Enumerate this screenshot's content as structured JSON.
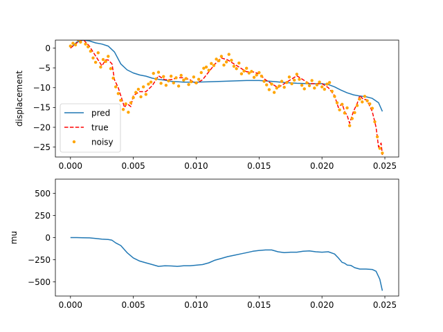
{
  "chart_data": [
    {
      "type": "line",
      "ylabel": "displacement",
      "xlim": [
        -0.0012,
        0.0261
      ],
      "ylim": [
        -27.5,
        2
      ],
      "xticks": [
        "0.000",
        "0.005",
        "0.010",
        "0.015",
        "0.020",
        "0.025"
      ],
      "xtick_values": [
        0,
        0.005,
        0.01,
        0.015,
        0.02,
        0.025
      ],
      "yticks": [
        "0",
        "−5",
        "−10",
        "−15",
        "−20",
        "−25"
      ],
      "ytick_values": [
        0,
        -5,
        -10,
        -15,
        -20,
        -25
      ],
      "legend_position": "lower-left",
      "series": [
        {
          "name": "pred",
          "style": "solid",
          "color": "#1f77b4",
          "x": [
            0,
            0.0005,
            0.001,
            0.0015,
            0.002,
            0.0025,
            0.003,
            0.0035,
            0.004,
            0.0045,
            0.005,
            0.0055,
            0.006,
            0.0065,
            0.007,
            0.0075,
            0.008,
            0.009,
            0.01,
            0.011,
            0.012,
            0.013,
            0.014,
            0.015,
            0.016,
            0.017,
            0.018,
            0.019,
            0.02,
            0.0205,
            0.021,
            0.0215,
            0.022,
            0.0225,
            0.023,
            0.0235,
            0.024,
            0.0245,
            0.0248
          ],
          "y": [
            0,
            1.5,
            2,
            1.8,
            1.3,
            1,
            0.5,
            -1,
            -4,
            -5.5,
            -6.3,
            -6.8,
            -7.1,
            -7.6,
            -7.9,
            -8.1,
            -8.4,
            -8.6,
            -8.6,
            -8.5,
            -8.4,
            -8.3,
            -8.2,
            -8.2,
            -8.4,
            -8.7,
            -8.9,
            -9.0,
            -9.0,
            -9.2,
            -9.8,
            -10.6,
            -11.3,
            -11.8,
            -12.1,
            -12.3,
            -12.7,
            -13.8,
            -16
          ]
        },
        {
          "name": "true",
          "style": "dashed",
          "color": "#ff0000",
          "x": [
            0,
            0.0005,
            0.001,
            0.0015,
            0.002,
            0.0025,
            0.0028,
            0.003,
            0.0033,
            0.0035,
            0.0038,
            0.004,
            0.0043,
            0.0045,
            0.0048,
            0.005,
            0.0055,
            0.006,
            0.0065,
            0.007,
            0.0075,
            0.008,
            0.0085,
            0.009,
            0.0095,
            0.01,
            0.0105,
            0.011,
            0.0115,
            0.012,
            0.0125,
            0.013,
            0.0135,
            0.014,
            0.0145,
            0.015,
            0.0155,
            0.016,
            0.0165,
            0.017,
            0.0175,
            0.018,
            0.0185,
            0.019,
            0.0195,
            0.02,
            0.0205,
            0.021,
            0.0213,
            0.0216,
            0.0218,
            0.022,
            0.0222,
            0.0225,
            0.0228,
            0.023,
            0.0233,
            0.0235,
            0.0237,
            0.024,
            0.0243,
            0.0245,
            0.0247,
            0.0248
          ],
          "y": [
            0,
            1.3,
            2.2,
            0.5,
            -2,
            -4.5,
            -3,
            -3,
            -4,
            -8,
            -10,
            -12,
            -15,
            -14,
            -14.8,
            -12,
            -11,
            -11,
            -9.5,
            -7,
            -8,
            -8,
            -7.5,
            -7.5,
            -8,
            -9,
            -8,
            -6,
            -4,
            -2.5,
            -3,
            -4,
            -5,
            -6,
            -6,
            -6.5,
            -8,
            -9,
            -10,
            -9,
            -8,
            -7,
            -8,
            -9,
            -9,
            -9,
            -10,
            -12,
            -15,
            -14,
            -16,
            -17,
            -19,
            -16,
            -14,
            -12,
            -13,
            -13,
            -14,
            -16,
            -20,
            -25,
            -24,
            -27
          ]
        },
        {
          "name": "noisy",
          "style": "points",
          "color": "#ffa500",
          "x": [
            0,
            0.0002,
            0.0004,
            0.0006,
            0.0008,
            0.001,
            0.0012,
            0.0014,
            0.0016,
            0.0018,
            0.002,
            0.0022,
            0.0024,
            0.0026,
            0.0028,
            0.003,
            0.0032,
            0.0034,
            0.0036,
            0.0038,
            0.004,
            0.0042,
            0.0044,
            0.0046,
            0.0048,
            0.005,
            0.0052,
            0.0054,
            0.0056,
            0.0058,
            0.006,
            0.0062,
            0.0064,
            0.0066,
            0.0068,
            0.007,
            0.0072,
            0.0074,
            0.0076,
            0.0078,
            0.008,
            0.0082,
            0.0084,
            0.0086,
            0.0088,
            0.009,
            0.0092,
            0.0094,
            0.0096,
            0.0098,
            0.01,
            0.0102,
            0.0104,
            0.0106,
            0.0108,
            0.011,
            0.0112,
            0.0114,
            0.0116,
            0.0118,
            0.012,
            0.0122,
            0.0124,
            0.0126,
            0.0128,
            0.013,
            0.0132,
            0.0134,
            0.0136,
            0.0138,
            0.014,
            0.0142,
            0.0144,
            0.0146,
            0.0148,
            0.015,
            0.0152,
            0.0154,
            0.0156,
            0.0158,
            0.016,
            0.0162,
            0.0164,
            0.0166,
            0.0168,
            0.017,
            0.0172,
            0.0174,
            0.0176,
            0.0178,
            0.018,
            0.0182,
            0.0184,
            0.0186,
            0.0188,
            0.019,
            0.0192,
            0.0194,
            0.0196,
            0.0198,
            0.02,
            0.0202,
            0.0204,
            0.0206,
            0.0208,
            0.021,
            0.0212,
            0.0214,
            0.0216,
            0.0218,
            0.022,
            0.0222,
            0.0224,
            0.0226,
            0.0228,
            0.023,
            0.0232,
            0.0234,
            0.0236,
            0.0238,
            0.024,
            0.0242,
            0.0244,
            0.0246,
            0.0248
          ],
          "y": [
            0.5,
            1.2,
            0.8,
            2.1,
            1.5,
            2.4,
            1.0,
            0.3,
            -0.8,
            -2.5,
            -3.6,
            -1.2,
            -4.8,
            -2.9,
            -3.4,
            -2.1,
            -5.2,
            -7.6,
            -9.8,
            -11.5,
            -13.2,
            -15.5,
            -14.1,
            -16.2,
            -13.8,
            -12.5,
            -11.2,
            -10.4,
            -12.3,
            -9.8,
            -11.7,
            -9.1,
            -8.6,
            -6.4,
            -7.8,
            -6.1,
            -8.9,
            -7.2,
            -9.4,
            -8.3,
            -7.1,
            -8.8,
            -7.5,
            -9.6,
            -6.9,
            -8.1,
            -7.7,
            -9.2,
            -8.5,
            -7.3,
            -8.8,
            -7.9,
            -6.2,
            -5.1,
            -4.8,
            -5.6,
            -3.9,
            -4.4,
            -2.8,
            -3.2,
            -2.1,
            -4.3,
            -3.5,
            -1.6,
            -3.1,
            -4.6,
            -5.2,
            -3.8,
            -6.5,
            -5.8,
            -5.1,
            -6.3,
            -5.9,
            -7.4,
            -6.8,
            -6.2,
            -7.1,
            -8.4,
            -9.3,
            -10.5,
            -9.1,
            -11.2,
            -10.1,
            -9.6,
            -8.4,
            -9.9,
            -8.7,
            -7.3,
            -9.0,
            -8.1,
            -6.6,
            -7.9,
            -9.4,
            -10.3,
            -8.8,
            -9.5,
            -8.2,
            -10.1,
            -9.3,
            -8.6,
            -9.8,
            -10.4,
            -9.1,
            -8.7,
            -10.9,
            -12.2,
            -13.8,
            -15.6,
            -14.2,
            -16.4,
            -15.1,
            -19.6,
            -17.8,
            -16.3,
            -14.5,
            -12.9,
            -13.6,
            -12.2,
            -13.3,
            -14.1,
            -15.2,
            -18.6,
            -22.4,
            -25.3,
            -26.5
          ]
        }
      ]
    },
    {
      "type": "line",
      "ylabel": "mu",
      "xlim": [
        -0.0012,
        0.0261
      ],
      "ylim": [
        -660,
        660
      ],
      "xticks": [
        "0.000",
        "0.005",
        "0.010",
        "0.015",
        "0.020",
        "0.025"
      ],
      "xtick_values": [
        0,
        0.005,
        0.01,
        0.015,
        0.02,
        0.025
      ],
      "yticks": [
        "500",
        "250",
        "0",
        "−250",
        "−500"
      ],
      "ytick_values": [
        500,
        250,
        0,
        -250,
        -500
      ],
      "series": [
        {
          "color": "#1f77b4",
          "style": "solid",
          "x": [
            0,
            0.0005,
            0.001,
            0.0015,
            0.002,
            0.0025,
            0.003,
            0.0033,
            0.0036,
            0.004,
            0.0045,
            0.005,
            0.0055,
            0.006,
            0.0065,
            0.007,
            0.0075,
            0.008,
            0.0085,
            0.009,
            0.0095,
            0.01,
            0.0105,
            0.011,
            0.0115,
            0.012,
            0.0125,
            0.013,
            0.0135,
            0.014,
            0.0145,
            0.015,
            0.0155,
            0.016,
            0.0165,
            0.017,
            0.0175,
            0.018,
            0.0185,
            0.019,
            0.0195,
            0.02,
            0.0205,
            0.021,
            0.0213,
            0.0216,
            0.0218,
            0.022,
            0.0223,
            0.0226,
            0.023,
            0.0235,
            0.024,
            0.0243,
            0.0246,
            0.0248
          ],
          "y": [
            0,
            0,
            -2,
            -3,
            -10,
            -18,
            -22,
            -30,
            -60,
            -90,
            -170,
            -230,
            -265,
            -285,
            -305,
            -325,
            -318,
            -320,
            -325,
            -318,
            -318,
            -312,
            -305,
            -285,
            -255,
            -235,
            -215,
            -200,
            -185,
            -170,
            -155,
            -145,
            -140,
            -140,
            -160,
            -170,
            -165,
            -165,
            -155,
            -150,
            -160,
            -165,
            -160,
            -185,
            -230,
            -280,
            -290,
            -310,
            -315,
            -340,
            -355,
            -355,
            -360,
            -380,
            -470,
            -600
          ]
        }
      ]
    }
  ]
}
